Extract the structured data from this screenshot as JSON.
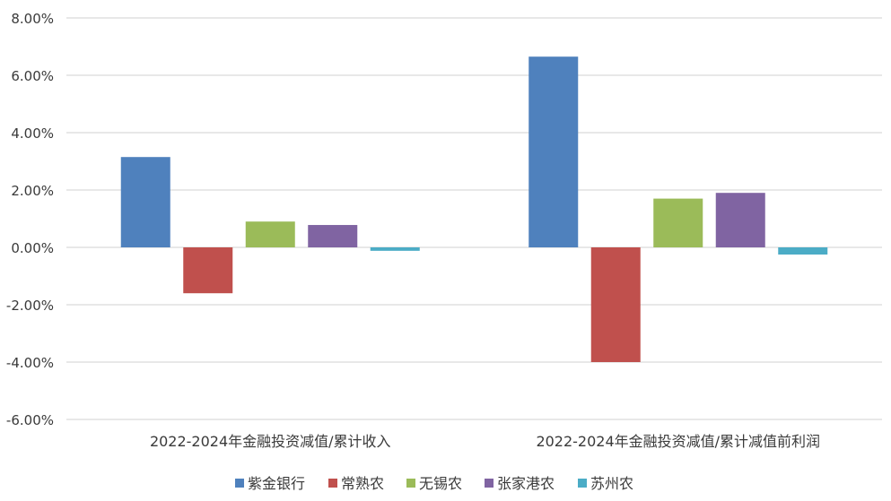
{
  "chart_data": {
    "type": "bar",
    "categories": [
      "2022-2024年金融投资减值/累计收入",
      "2022-2024年金融投资减值/累计减值前利润"
    ],
    "series": [
      {
        "name": "紫金银行",
        "color": "#4f81bd",
        "values": [
          3.15,
          6.65
        ]
      },
      {
        "name": "常熟农",
        "color": "#c0504d",
        "values": [
          -1.6,
          -4.0
        ]
      },
      {
        "name": "无锡农",
        "color": "#9bbb59",
        "values": [
          0.9,
          1.7
        ]
      },
      {
        "name": "张家港农",
        "color": "#8064a2",
        "values": [
          0.78,
          1.9
        ]
      },
      {
        "name": "苏州农",
        "color": "#4bacc6",
        "values": [
          -0.12,
          -0.25
        ]
      }
    ],
    "y_ticks": [
      "8.00%",
      "6.00%",
      "4.00%",
      "2.00%",
      "0.00%",
      "-2.00%",
      "-4.00%",
      "-6.00%"
    ],
    "ylim": [
      -6,
      8
    ],
    "y_unit": "%",
    "grid": true,
    "legend_position": "bottom"
  }
}
